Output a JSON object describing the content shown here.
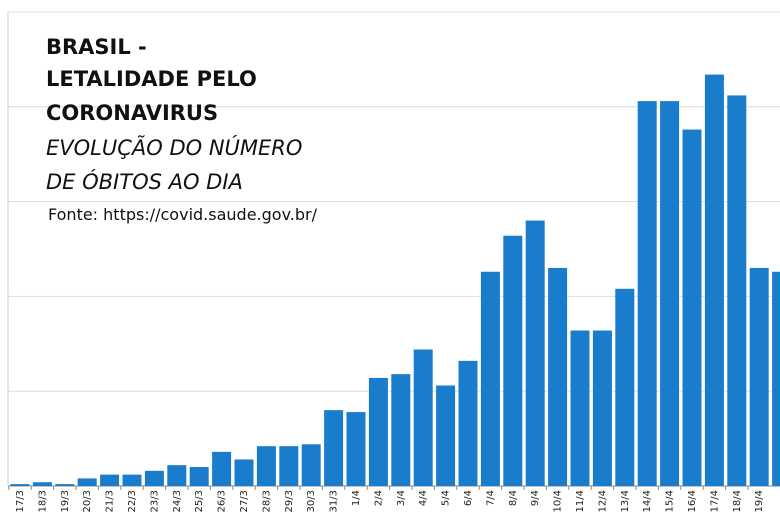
{
  "chart_data": {
    "type": "bar",
    "title": [
      "BRASIL -",
      "LETALIDADE  PELO",
      "CORONAVIRUS"
    ],
    "subtitle": [
      "EVOLUÇÃO DO NÚMERO",
      "DE ÓBITOS AO DIA"
    ],
    "source": "Fonte: https://covid.saude.gov.br/",
    "categories": [
      "17/3",
      "18/3",
      "19/3",
      "20/3",
      "21/3",
      "22/3",
      "23/3",
      "24/3",
      "25/3",
      "26/3",
      "27/3",
      "28/3",
      "29/3",
      "30/3",
      "31/3",
      "1/4",
      "2/4",
      "3/4",
      "4/4",
      "5/4",
      "6/4",
      "7/4",
      "8/4",
      "9/4",
      "10/4",
      "11/4",
      "12/4",
      "13/4",
      "14/4",
      "15/4",
      "16/4",
      "17/4",
      "18/4",
      "19/4",
      null
    ],
    "values": [
      1,
      2,
      1,
      4,
      6,
      6,
      8,
      11,
      10,
      18,
      14,
      21,
      21,
      22,
      40,
      39,
      57,
      59,
      72,
      53,
      66,
      113,
      132,
      140,
      115,
      82,
      82,
      104,
      203,
      203,
      188,
      217,
      206,
      115,
      113
    ],
    "color": "#1a7ccc",
    "ylim": [
      0,
      250
    ],
    "yticks": [
      0,
      50,
      100,
      150,
      200,
      250
    ],
    "grid": true
  }
}
